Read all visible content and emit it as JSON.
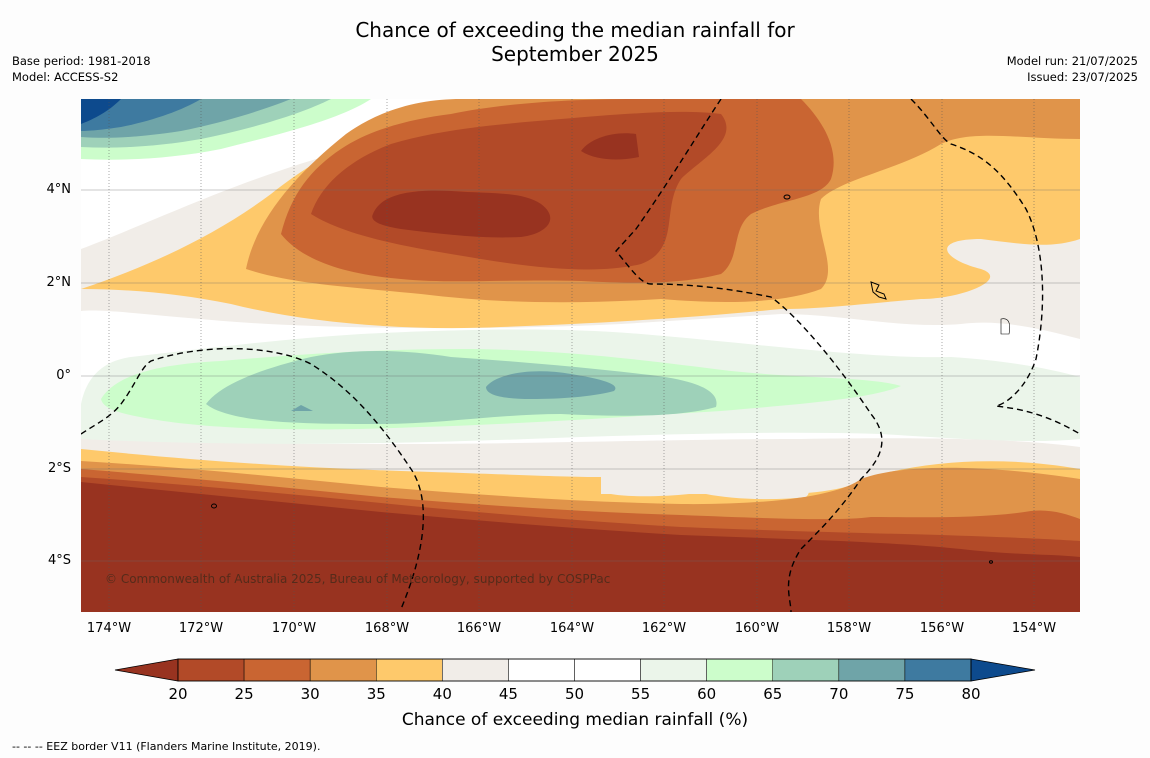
{
  "title_line1": "Chance of exceeding the median rainfall for",
  "title_line2": "September 2025",
  "meta_left": [
    "Base period: 1981-2018",
    "Model: ACCESS-S2"
  ],
  "meta_right": [
    "Model run: 21/07/2025",
    "Issued: 23/07/2025"
  ],
  "map": {
    "lon_range": [
      -174.6,
      -152.9
    ],
    "lat_range": [
      -5.2,
      5.85
    ],
    "lat_ticks": [
      {
        "value": 4,
        "label": "4°N"
      },
      {
        "value": 2,
        "label": "2°N"
      },
      {
        "value": 0,
        "label": "0°"
      },
      {
        "value": -2,
        "label": "2°S"
      },
      {
        "value": -4,
        "label": "4°S"
      }
    ],
    "lon_ticks": [
      {
        "value": -174,
        "label": "174°W"
      },
      {
        "value": -172,
        "label": "172°W"
      },
      {
        "value": -170,
        "label": "170°W"
      },
      {
        "value": -168,
        "label": "168°W"
      },
      {
        "value": -166,
        "label": "166°W"
      },
      {
        "value": -164,
        "label": "164°W"
      },
      {
        "value": -162,
        "label": "162°W"
      },
      {
        "value": -160,
        "label": "160°W"
      },
      {
        "value": -158,
        "label": "158°W"
      },
      {
        "value": -156,
        "label": "156°W"
      },
      {
        "value": -154,
        "label": "154°W"
      }
    ],
    "copyright": "© Commonwealth of Australia 2025, Bureau of Meteorology, supported by COSPPac"
  },
  "colorbar": {
    "label": "Chance of exceeding median rainfall (%)",
    "ticks": [
      "20",
      "25",
      "30",
      "35",
      "40",
      "45",
      "50",
      "55",
      "60",
      "65",
      "70",
      "75",
      "80"
    ],
    "colors": [
      "#983320",
      "#b24a28",
      "#c96532",
      "#e0944a",
      "#fec96b",
      "#f1ede8",
      "#ffffff",
      "#ffffff",
      "#ebf5ea",
      "#ccfdcb",
      "#9ed1b9",
      "#6fa4a8",
      "#3e7aa0",
      "#0d4a8d"
    ]
  },
  "footnote": "-- -- -- EEZ border V11 (Flanders Marine Institute, 2019)."
}
